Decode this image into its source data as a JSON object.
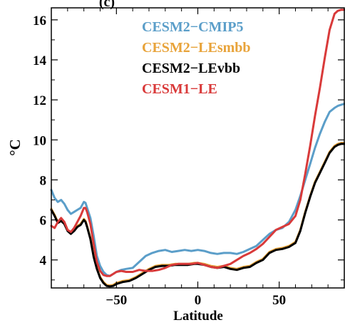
{
  "chart_data": {
    "type": "line",
    "title": "(c)",
    "xlabel": "Latitude",
    "ylabel": "°C",
    "xlim": [
      -90,
      90
    ],
    "ylim": [
      2.6,
      16.6
    ],
    "xticks": [
      -50,
      0,
      50
    ],
    "yticks": [
      4,
      6,
      8,
      10,
      12,
      14,
      16
    ],
    "grid": false,
    "legend_position": "top-right",
    "series": [
      {
        "name": "CESM2−CMIP5",
        "color": "#5b9ec9",
        "x": [
          -90,
          -88,
          -86,
          -84,
          -82,
          -80,
          -78,
          -76,
          -74,
          -72,
          -70,
          -69,
          -68,
          -66,
          -64,
          -62,
          -60,
          -58,
          -56,
          -54,
          -52,
          -50,
          -47,
          -44,
          -40,
          -36,
          -32,
          -28,
          -24,
          -20,
          -16,
          -12,
          -8,
          -4,
          0,
          4,
          8,
          12,
          16,
          20,
          24,
          28,
          32,
          36,
          40,
          44,
          48,
          52,
          56,
          60,
          63,
          66,
          69,
          72,
          75,
          78,
          81,
          84,
          86,
          88,
          90
        ],
        "y": [
          7.5,
          7.1,
          6.9,
          7.0,
          6.8,
          6.5,
          6.3,
          6.4,
          6.5,
          6.6,
          6.9,
          6.85,
          6.6,
          6.1,
          5.2,
          4.2,
          3.7,
          3.4,
          3.25,
          3.2,
          3.3,
          3.4,
          3.5,
          3.55,
          3.6,
          3.9,
          4.2,
          4.35,
          4.45,
          4.5,
          4.4,
          4.45,
          4.5,
          4.45,
          4.5,
          4.45,
          4.35,
          4.3,
          4.35,
          4.35,
          4.3,
          4.4,
          4.55,
          4.7,
          5.0,
          5.3,
          5.5,
          5.6,
          5.9,
          6.5,
          7.2,
          8.0,
          8.8,
          9.6,
          10.3,
          10.9,
          11.4,
          11.6,
          11.7,
          11.75,
          11.8
        ]
      },
      {
        "name": "CESM2−LEsmbb",
        "color": "#e8a33a",
        "x": [
          -90,
          -88,
          -86,
          -84,
          -82,
          -80,
          -78,
          -76,
          -74,
          -72,
          -70,
          -69,
          -68,
          -66,
          -64,
          -62,
          -60,
          -58,
          -56,
          -54,
          -52,
          -50,
          -46,
          -42,
          -38,
          -34,
          -30,
          -26,
          -22,
          -18,
          -14,
          -10,
          -6,
          -2,
          0,
          4,
          8,
          12,
          16,
          20,
          24,
          28,
          32,
          36,
          40,
          44,
          48,
          52,
          56,
          60,
          63,
          66,
          69,
          72,
          75,
          78,
          81,
          84,
          86,
          88,
          90
        ],
        "y": [
          6.55,
          6.25,
          5.9,
          6.0,
          5.85,
          5.5,
          5.35,
          5.5,
          5.7,
          5.8,
          6.05,
          5.95,
          5.7,
          5.1,
          4.2,
          3.6,
          3.15,
          2.9,
          2.75,
          2.72,
          2.75,
          2.85,
          2.95,
          3.0,
          3.15,
          3.35,
          3.55,
          3.7,
          3.75,
          3.75,
          3.8,
          3.8,
          3.8,
          3.85,
          3.85,
          3.8,
          3.7,
          3.65,
          3.7,
          3.6,
          3.55,
          3.65,
          3.7,
          3.9,
          4.05,
          4.4,
          4.55,
          4.6,
          4.7,
          4.9,
          5.5,
          6.4,
          7.2,
          7.9,
          8.4,
          8.9,
          9.4,
          9.7,
          9.8,
          9.85,
          9.85
        ]
      },
      {
        "name": "CESM2−LEvbb",
        "color": "#000000",
        "x": [
          -90,
          -88,
          -86,
          -84,
          -82,
          -80,
          -78,
          -76,
          -74,
          -72,
          -70,
          -69,
          -68,
          -66,
          -64,
          -62,
          -60,
          -58,
          -56,
          -54,
          -52,
          -50,
          -46,
          -42,
          -38,
          -34,
          -30,
          -26,
          -22,
          -18,
          -14,
          -10,
          -6,
          -2,
          0,
          4,
          8,
          12,
          16,
          20,
          24,
          28,
          32,
          36,
          40,
          44,
          48,
          52,
          56,
          60,
          63,
          66,
          69,
          72,
          75,
          78,
          81,
          84,
          86,
          88,
          90
        ],
        "y": [
          6.5,
          6.2,
          5.85,
          5.95,
          5.8,
          5.45,
          5.3,
          5.45,
          5.65,
          5.75,
          6.0,
          5.9,
          5.65,
          5.05,
          4.15,
          3.55,
          3.1,
          2.85,
          2.7,
          2.68,
          2.7,
          2.8,
          2.9,
          2.95,
          3.1,
          3.3,
          3.5,
          3.65,
          3.7,
          3.7,
          3.75,
          3.75,
          3.75,
          3.8,
          3.8,
          3.75,
          3.65,
          3.6,
          3.65,
          3.55,
          3.5,
          3.6,
          3.65,
          3.85,
          4.0,
          4.35,
          4.5,
          4.55,
          4.65,
          4.85,
          5.45,
          6.35,
          7.15,
          7.85,
          8.35,
          8.85,
          9.35,
          9.65,
          9.75,
          9.8,
          9.8
        ]
      },
      {
        "name": "CESM1−LE",
        "color": "#d93a3a",
        "x": [
          -90,
          -88,
          -86,
          -84,
          -82,
          -80,
          -78,
          -76,
          -74,
          -72,
          -70,
          -69,
          -68,
          -66,
          -64,
          -62,
          -60,
          -58,
          -56,
          -54,
          -52,
          -50,
          -47,
          -44,
          -40,
          -36,
          -32,
          -28,
          -24,
          -20,
          -16,
          -12,
          -8,
          -4,
          0,
          4,
          8,
          12,
          16,
          20,
          24,
          28,
          32,
          36,
          40,
          44,
          48,
          52,
          56,
          60,
          63,
          66,
          69,
          72,
          75,
          78,
          81,
          84,
          86,
          88,
          90
        ],
        "y": [
          5.7,
          5.6,
          5.9,
          6.1,
          5.9,
          5.5,
          5.4,
          5.6,
          5.9,
          6.2,
          6.6,
          6.6,
          6.4,
          5.8,
          4.8,
          3.9,
          3.45,
          3.25,
          3.2,
          3.2,
          3.3,
          3.4,
          3.45,
          3.4,
          3.4,
          3.5,
          3.45,
          3.45,
          3.5,
          3.6,
          3.75,
          3.8,
          3.8,
          3.8,
          3.85,
          3.75,
          3.65,
          3.6,
          3.7,
          3.8,
          4.0,
          4.2,
          4.35,
          4.55,
          4.8,
          5.15,
          5.5,
          5.65,
          5.8,
          6.2,
          7.0,
          8.3,
          9.7,
          11.2,
          12.6,
          14.1,
          15.5,
          16.3,
          16.45,
          16.5,
          16.5
        ]
      }
    ]
  }
}
